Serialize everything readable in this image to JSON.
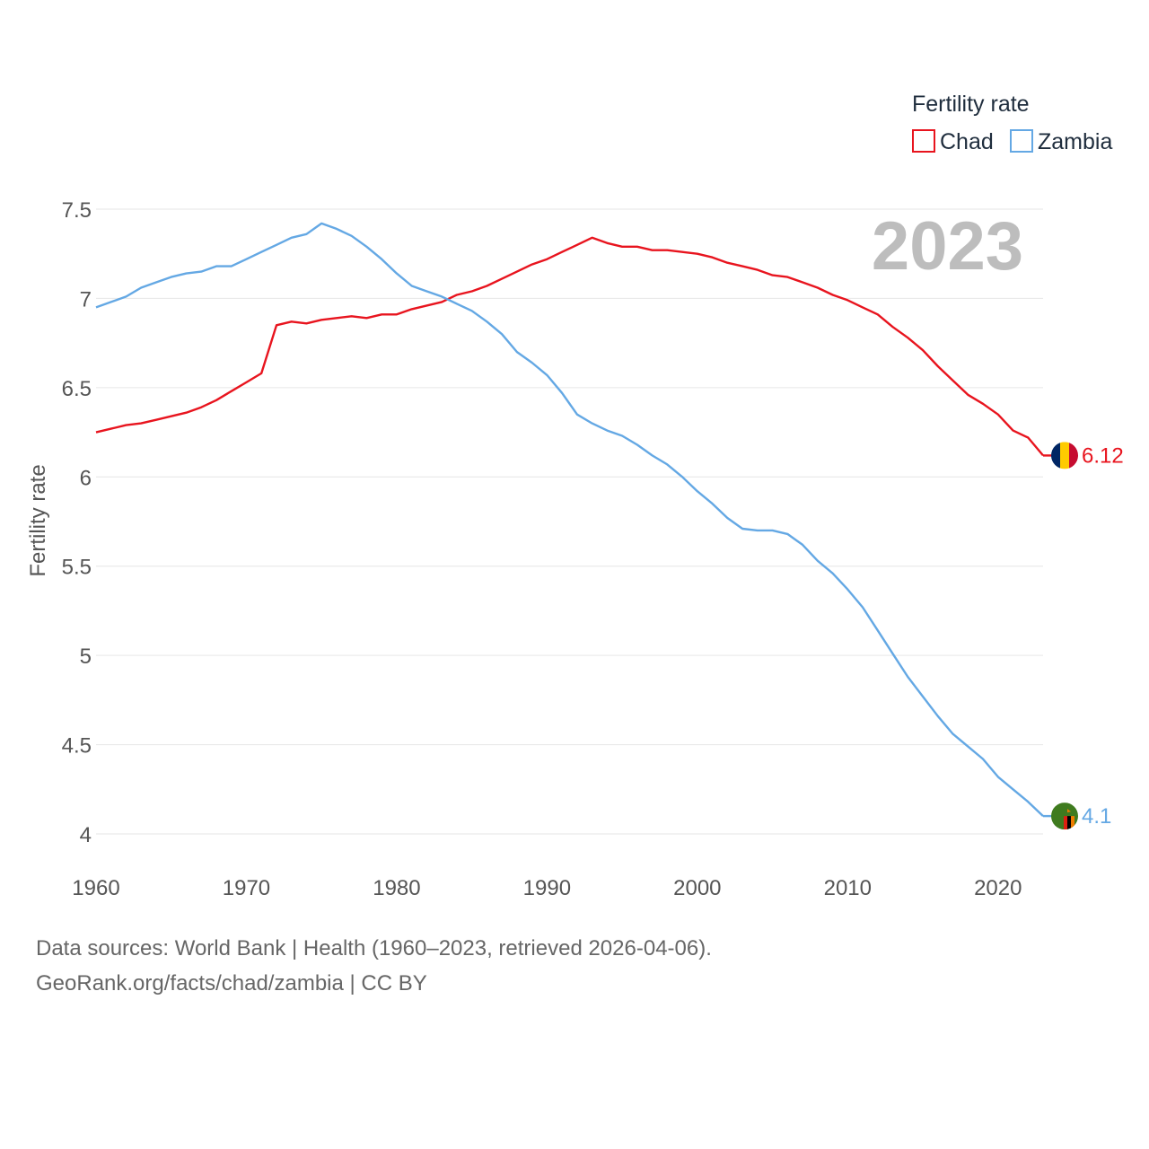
{
  "chart_data": {
    "type": "line",
    "ylabel": "Fertility rate",
    "xlim": [
      1960,
      2023
    ],
    "ylim": [
      4,
      7.5
    ],
    "x_ticks": [
      1960,
      1970,
      1980,
      1990,
      2000,
      2010,
      2020
    ],
    "y_ticks": [
      4,
      4.5,
      5,
      5.5,
      6,
      6.5,
      7,
      7.5
    ],
    "y_tick_labels": [
      "4",
      "4.5",
      "5",
      "5.5",
      "6",
      "6.5",
      "7",
      "7.5"
    ],
    "legend_title": "Fertility rate",
    "year_label": "2023",
    "x": [
      1960,
      1961,
      1962,
      1963,
      1964,
      1965,
      1966,
      1967,
      1968,
      1969,
      1970,
      1971,
      1972,
      1973,
      1974,
      1975,
      1976,
      1977,
      1978,
      1979,
      1980,
      1981,
      1982,
      1983,
      1984,
      1985,
      1986,
      1987,
      1988,
      1989,
      1990,
      1991,
      1992,
      1993,
      1994,
      1995,
      1996,
      1997,
      1998,
      1999,
      2000,
      2001,
      2002,
      2003,
      2004,
      2005,
      2006,
      2007,
      2008,
      2009,
      2010,
      2011,
      2012,
      2013,
      2014,
      2015,
      2016,
      2017,
      2018,
      2019,
      2020,
      2021,
      2022,
      2023
    ],
    "series": [
      {
        "name": "Chad",
        "color": "#e8141e",
        "end_label": "6.12",
        "values": [
          6.25,
          6.27,
          6.29,
          6.3,
          6.32,
          6.34,
          6.36,
          6.39,
          6.43,
          6.48,
          6.53,
          6.58,
          6.85,
          6.87,
          6.86,
          6.88,
          6.89,
          6.9,
          6.89,
          6.91,
          6.91,
          6.94,
          6.96,
          6.98,
          7.02,
          7.04,
          7.07,
          7.11,
          7.15,
          7.19,
          7.22,
          7.26,
          7.3,
          7.34,
          7.31,
          7.29,
          7.29,
          7.27,
          7.27,
          7.26,
          7.25,
          7.23,
          7.2,
          7.18,
          7.16,
          7.13,
          7.12,
          7.09,
          7.06,
          7.02,
          6.99,
          6.95,
          6.91,
          6.84,
          6.78,
          6.71,
          6.62,
          6.54,
          6.46,
          6.41,
          6.35,
          6.26,
          6.22,
          6.12
        ]
      },
      {
        "name": "Zambia",
        "color": "#64a8e4",
        "end_label": "4.1",
        "values": [
          6.95,
          6.98,
          7.01,
          7.06,
          7.09,
          7.12,
          7.14,
          7.15,
          7.18,
          7.18,
          7.22,
          7.26,
          7.3,
          7.34,
          7.36,
          7.42,
          7.39,
          7.35,
          7.29,
          7.22,
          7.14,
          7.07,
          7.04,
          7.01,
          6.97,
          6.93,
          6.87,
          6.8,
          6.7,
          6.64,
          6.57,
          6.47,
          6.35,
          6.3,
          6.26,
          6.23,
          6.18,
          6.12,
          6.07,
          6.0,
          5.92,
          5.85,
          5.77,
          5.71,
          5.7,
          5.7,
          5.68,
          5.62,
          5.53,
          5.46,
          5.37,
          5.27,
          5.14,
          5.01,
          4.88,
          4.77,
          4.66,
          4.56,
          4.49,
          4.42,
          4.32,
          4.25,
          4.18,
          4.1
        ]
      }
    ]
  },
  "source": {
    "line1": "Data sources: World Bank | Health (1960–2023, retrieved 2026-04-06).",
    "line2": "GeoRank.org/facts/chad/zambia | CC BY"
  },
  "flags": [
    {
      "country": "Chad",
      "colors": [
        "#002664",
        "#fecb00",
        "#c60c30"
      ]
    },
    {
      "country": "Zambia",
      "colors": [
        "#198a00",
        "#de2010",
        "#000000",
        "#ef7d00"
      ]
    }
  ]
}
